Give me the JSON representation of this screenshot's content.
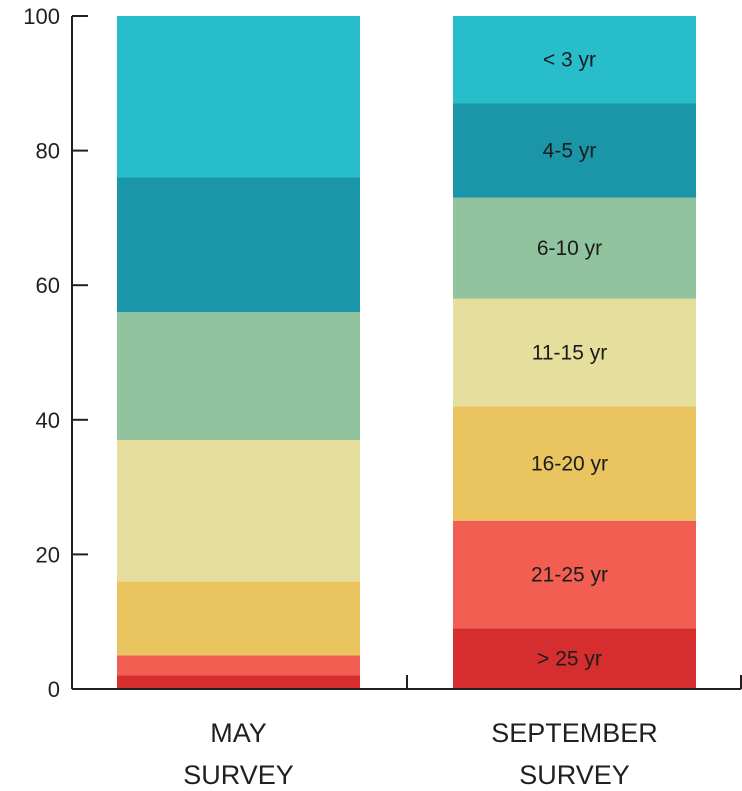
{
  "chart_data": {
    "type": "bar",
    "stacked": true,
    "categories": [
      [
        "MAY",
        "SURVEY"
      ],
      [
        "SEPTEMBER",
        "SURVEY"
      ]
    ],
    "ylim": [
      0,
      100
    ],
    "yticks": [
      0,
      20,
      40,
      60,
      80,
      100
    ],
    "series": [
      {
        "label": "> 25 yr",
        "color": "#d62e2e",
        "values": [
          2,
          9
        ]
      },
      {
        "label": "21-25 yr",
        "color": "#f25f52",
        "values": [
          3,
          16
        ]
      },
      {
        "label": "16-20 yr",
        "color": "#e9c45f",
        "values": [
          11,
          17
        ]
      },
      {
        "label": "11-15 yr",
        "color": "#e6de9d",
        "values": [
          21,
          16
        ]
      },
      {
        "label": "6-10 yr",
        "color": "#92c39f",
        "values": [
          19,
          15
        ]
      },
      {
        "label": "4-5 yr",
        "color": "#1a96a8",
        "values": [
          20,
          14
        ]
      },
      {
        "label": "< 3 yr",
        "color": "#27bdca",
        "values": [
          24,
          13
        ]
      }
    ],
    "segment_labels_on_category": 1,
    "grid": false,
    "title": "",
    "xlabel": "",
    "ylabel": ""
  }
}
